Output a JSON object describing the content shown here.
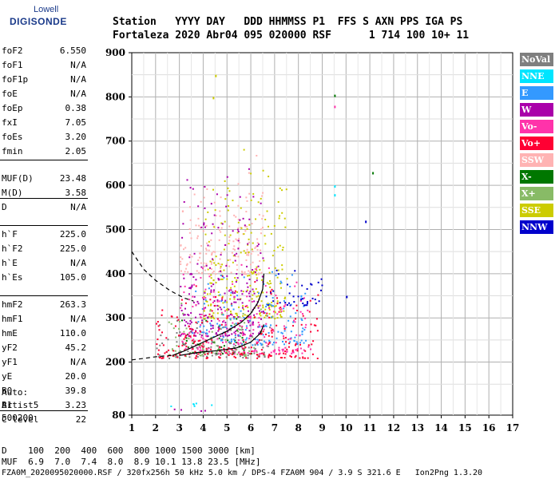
{
  "logo": {
    "top": "Lowell",
    "main": "DIGISONDE"
  },
  "header": {
    "line1": "Station   YYYY DAY   DDD HHMMSS P1  FFS S AXN PPS IGA PS",
    "line2": "Fortaleza 2020 Abr04 095 020000 RSF      1 714 100 10+ 11"
  },
  "params": [
    {
      "name": "foF2",
      "value": "6.550"
    },
    {
      "name": "foF1",
      "value": "N/A"
    },
    {
      "name": "foF1p",
      "value": "N/A"
    },
    {
      "name": "foE",
      "value": "N/A"
    },
    {
      "name": "foEp",
      "value": "0.38"
    },
    {
      "name": "fxI",
      "value": "7.05"
    },
    {
      "name": "foEs",
      "value": "3.20"
    },
    {
      "name": "fmin",
      "value": "2.05"
    },
    {
      "name": "MUF(D)",
      "value": "23.48"
    },
    {
      "name": "M(D)",
      "value": "3.58"
    },
    {
      "name": "D",
      "value": "N/A"
    },
    {
      "name": "h`F",
      "value": "225.0"
    },
    {
      "name": "h`F2",
      "value": "225.0"
    },
    {
      "name": "h`E",
      "value": "N/A"
    },
    {
      "name": "h`Es",
      "value": "105.0"
    },
    {
      "name": "hmF2",
      "value": "263.3"
    },
    {
      "name": "hmF1",
      "value": "N/A"
    },
    {
      "name": "hmE",
      "value": "110.0"
    },
    {
      "name": "yF2",
      "value": "45.2"
    },
    {
      "name": "yF1",
      "value": "N/A"
    },
    {
      "name": "yE",
      "value": "20.0"
    },
    {
      "name": "B0",
      "value": "39.8"
    },
    {
      "name": "B1",
      "value": "3.23"
    },
    {
      "name": "C-level",
      "value": "22"
    }
  ],
  "auto": {
    "line1": "Auto:",
    "line2": "Artist5",
    "line3": "500200"
  },
  "bottom": {
    "d_line": "D    100  200  400  600  800 1000 1500 3000 [km]",
    "muf_line": "MUF  6.9  7.0  7.4  8.0  8.9 10.1 13.8 23.5 [MHz]",
    "file_line": "FZA0M_2020095020000.RSF / 320fx256h 50 kHz 5.0 km / DPS-4 FZA0M 904 / 3.9 S 321.6 E   Ion2Png 1.3.20"
  },
  "legend": [
    {
      "label": "NoVal",
      "color": "#7f7f7f",
      "text_color": "#ffffff"
    },
    {
      "label": "NNE",
      "color": "#00e5ff",
      "text_color": "#ffffff"
    },
    {
      "label": "E",
      "color": "#3399ff",
      "text_color": "#ffffff"
    },
    {
      "label": "W",
      "color": "#aa00aa",
      "text_color": "#ffffff"
    },
    {
      "label": "Vo-",
      "color": "#ff33aa",
      "text_color": "#ffffff"
    },
    {
      "label": "Vo+",
      "color": "#ff0033",
      "text_color": "#ffffff"
    },
    {
      "label": "SSW",
      "color": "#ffb3b3",
      "text_color": "#ffffff"
    },
    {
      "label": "X-",
      "color": "#007700",
      "text_color": "#ffffff"
    },
    {
      "label": "X+",
      "color": "#88bb66",
      "text_color": "#ffffff"
    },
    {
      "label": "SSE",
      "color": "#cccc00",
      "text_color": "#ffffff"
    },
    {
      "label": "NNW",
      "color": "#0000cc",
      "text_color": "#ffffff"
    }
  ],
  "chart_data": {
    "type": "scatter",
    "title": "",
    "xlabel": "",
    "ylabel": "",
    "xlim": [
      1,
      17
    ],
    "ylim": [
      80,
      900
    ],
    "x_ticks": [
      1,
      2,
      3,
      4,
      5,
      6,
      7,
      8,
      9,
      10,
      11,
      12,
      13,
      14,
      15,
      16,
      17
    ],
    "y_ticks": [
      80,
      200,
      300,
      400,
      500,
      600,
      700,
      800,
      900
    ],
    "grid": true,
    "clusters": [
      {
        "name": "NoVal",
        "x": [
          1.9,
          6.8
        ],
        "y": [
          210,
          330
        ]
      },
      {
        "name": "Vo+",
        "x": [
          2.0,
          8.8
        ],
        "y": [
          210,
          400
        ]
      },
      {
        "name": "Vo-",
        "x": [
          3.0,
          8.5
        ],
        "y": [
          220,
          450
        ]
      },
      {
        "name": "W",
        "x": [
          2.0,
          4.5
        ],
        "y": [
          90,
          100
        ]
      },
      {
        "name": "W",
        "x": [
          3.0,
          6.5
        ],
        "y": [
          260,
          680
        ]
      },
      {
        "name": "E",
        "x": [
          3.5,
          8.3
        ],
        "y": [
          240,
          420
        ]
      },
      {
        "name": "NNE",
        "x": [
          2.0,
          4.5
        ],
        "y": [
          100,
          115
        ]
      },
      {
        "name": "X+",
        "x": [
          2.5,
          6.6
        ],
        "y": [
          215,
          340
        ]
      },
      {
        "name": "X-",
        "x": [
          3.0,
          6.0
        ],
        "y": [
          220,
          320
        ]
      },
      {
        "name": "SSE",
        "x": [
          4.0,
          7.5
        ],
        "y": [
          300,
          700
        ]
      },
      {
        "name": "NNW",
        "x": [
          6.5,
          9.0
        ],
        "y": [
          330,
          420
        ]
      },
      {
        "name": "SSW",
        "x": [
          3.0,
          6.5
        ],
        "y": [
          400,
          690
        ]
      }
    ],
    "isolated_points": [
      {
        "name": "X-",
        "x": 9.5,
        "y": 805
      },
      {
        "name": "Vo-",
        "x": 9.5,
        "y": 780
      },
      {
        "name": "NNE",
        "x": 9.5,
        "y": 600
      },
      {
        "name": "NNE",
        "x": 9.5,
        "y": 580
      },
      {
        "name": "X-",
        "x": 11.1,
        "y": 630
      },
      {
        "name": "NNW",
        "x": 10.8,
        "y": 520
      },
      {
        "name": "NNW",
        "x": 10.0,
        "y": 350
      },
      {
        "name": "SSE",
        "x": 4.4,
        "y": 800
      },
      {
        "name": "SSE",
        "x": 4.5,
        "y": 850
      }
    ],
    "profile_solid": {
      "x": [
        2.7,
        3.2,
        3.8,
        4.4,
        5.0,
        5.6,
        6.0,
        6.3,
        6.5,
        6.55
      ],
      "y": [
        215,
        225,
        240,
        255,
        270,
        290,
        310,
        335,
        365,
        400
      ]
    },
    "profile_solid_lower": {
      "x": [
        3.0,
        3.8,
        4.6,
        5.4,
        6.0,
        6.4,
        6.55
      ],
      "y": [
        215,
        222,
        226,
        232,
        245,
        265,
        285
      ]
    },
    "profile_dashed_upper": {
      "x": [
        1.0,
        1.5,
        2.0,
        2.6,
        3.2,
        3.6
      ],
      "y": [
        450,
        410,
        385,
        362,
        345,
        338
      ]
    },
    "profile_dashed_lower": {
      "x": [
        1.0,
        1.6,
        2.0,
        2.4,
        2.7
      ],
      "y": [
        205,
        209,
        212,
        214,
        215
      ]
    }
  }
}
